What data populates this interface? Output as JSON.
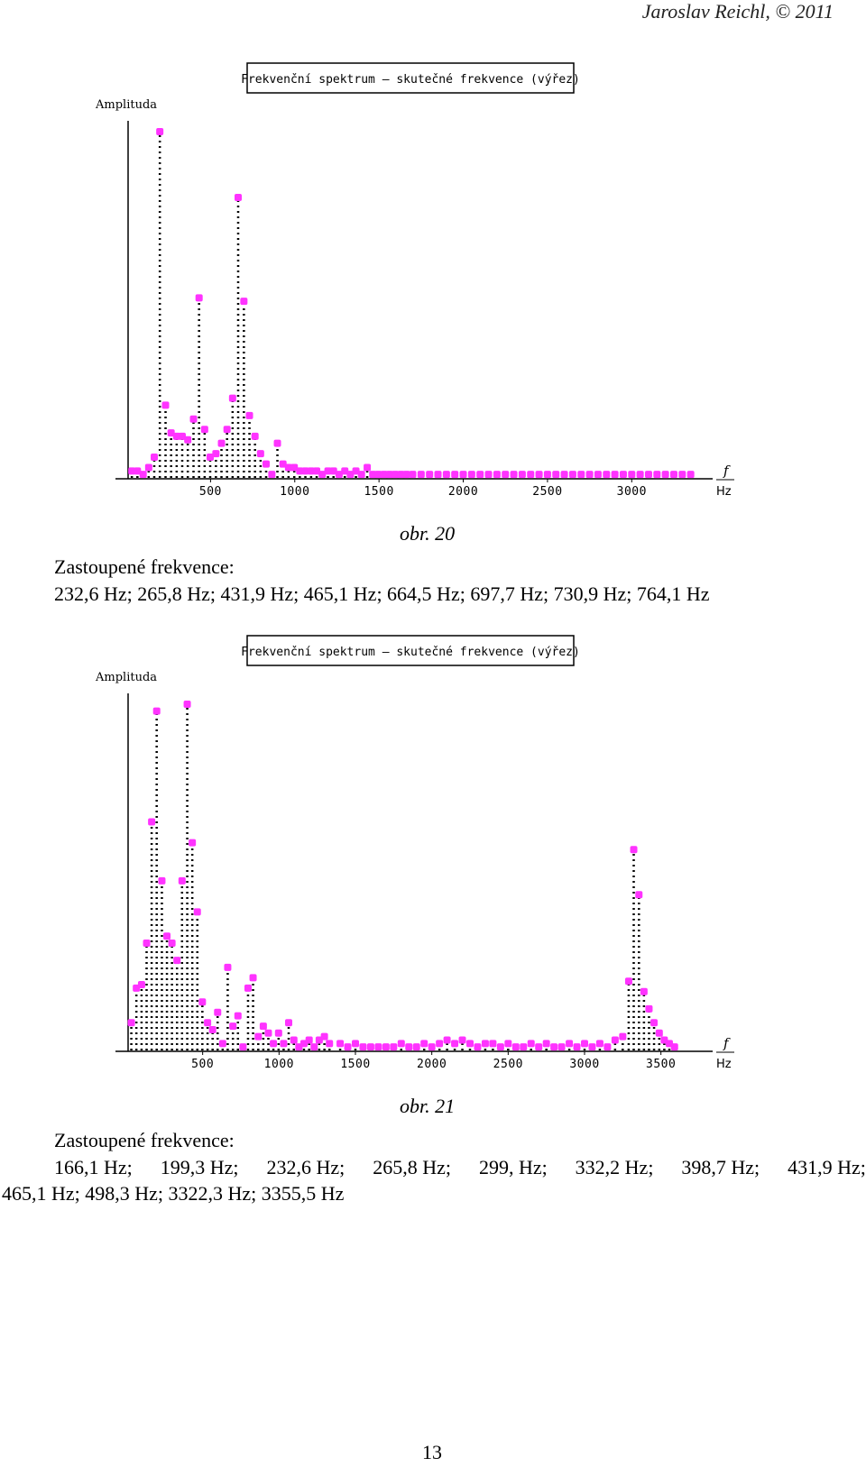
{
  "header": {
    "author": "Jaroslav Reichl, © 2011"
  },
  "figures": [
    {
      "caption": "obr. 20",
      "frequencies_label": "Zastoupené frekvence:",
      "frequencies_text": "232,6 Hz; 265,8 Hz; 431,9 Hz; 465,1 Hz; 664,5 Hz; 697,7 Hz; 730,9 Hz; 764,1 Hz"
    },
    {
      "caption": "obr. 21",
      "frequencies_label": "Zastoupené frekvence:",
      "frequencies_items": [
        "166,1 Hz;",
        "199,3 Hz;",
        "232,6 Hz;",
        "265,8 Hz;",
        "299, Hz;",
        "332,2 Hz;",
        "398,7 Hz;",
        "431,9 Hz;"
      ],
      "frequencies_text_line2": "465,1 Hz; 498,3 Hz; 3322,3 Hz; 3355,5 Hz"
    }
  ],
  "page_number": "13",
  "colors": {
    "marker": "#ff33ff",
    "stem": "#000000",
    "axis": "#000000"
  },
  "chart_data": [
    {
      "type": "scatter",
      "title": "Frekvenční spektrum – skutečné frekvence (výřez)",
      "ylabel": "Amplituda",
      "xlabel": "f Hz",
      "x_unit": "Hz",
      "xticks": [
        500,
        1000,
        1500,
        2000,
        2500,
        3000
      ],
      "xlim": [
        0,
        3400
      ],
      "ylim": [
        0,
        100
      ],
      "grid": false,
      "stems": true,
      "x": [
        33,
        66,
        100,
        133,
        166,
        199,
        233,
        266,
        299,
        332,
        365,
        399,
        432,
        465,
        498,
        532,
        565,
        598,
        631,
        664,
        698,
        731,
        764,
        797,
        830,
        864,
        897,
        930,
        963,
        997,
        1030,
        1063,
        1097,
        1130,
        1163,
        1197,
        1230,
        1263,
        1297,
        1330,
        1363,
        1396,
        1430,
        1463,
        1496,
        1530,
        1563,
        1596,
        1630,
        1663,
        1700,
        1750,
        1800,
        1850,
        1900,
        1950,
        2000,
        2050,
        2100,
        2150,
        2200,
        2250,
        2300,
        2350,
        2400,
        2450,
        2500,
        2550,
        2600,
        2650,
        2700,
        2750,
        2800,
        2850,
        2900,
        2950,
        3000,
        3050,
        3100,
        3150,
        3200,
        3250,
        3300,
        3350
      ],
      "y": [
        2,
        2,
        1,
        3,
        6,
        100,
        21,
        13,
        12,
        12,
        11,
        17,
        52,
        14,
        6,
        7,
        10,
        14,
        23,
        81,
        51,
        18,
        12,
        7,
        4,
        1,
        10,
        4,
        3,
        3,
        2,
        2,
        2,
        2,
        1,
        2,
        2,
        1,
        2,
        1,
        2,
        1,
        3,
        1,
        1,
        1,
        1,
        1,
        1,
        1,
        1,
        1,
        1,
        1,
        1,
        1,
        1,
        1,
        1,
        1,
        1,
        1,
        1,
        1,
        1,
        1,
        1,
        1,
        1,
        1,
        1,
        1,
        1,
        1,
        1,
        1,
        1,
        1,
        1,
        1,
        1,
        1,
        1,
        1
      ]
    },
    {
      "type": "scatter",
      "title": "Frekvenční spektrum – skutečné frekvence (výřez)",
      "ylabel": "Amplituda",
      "xlabel": "f Hz",
      "x_unit": "Hz",
      "xticks": [
        500,
        1000,
        1500,
        2000,
        2500,
        3000,
        3500
      ],
      "xlim": [
        0,
        3750
      ],
      "ylim": [
        0,
        100
      ],
      "grid": false,
      "stems": true,
      "x": [
        33,
        66,
        100,
        133,
        166,
        199,
        233,
        266,
        299,
        332,
        365,
        399,
        432,
        465,
        498,
        532,
        565,
        598,
        631,
        664,
        698,
        731,
        764,
        797,
        830,
        864,
        897,
        930,
        963,
        997,
        1030,
        1063,
        1097,
        1130,
        1163,
        1197,
        1230,
        1263,
        1297,
        1330,
        1400,
        1450,
        1500,
        1550,
        1600,
        1650,
        1700,
        1750,
        1800,
        1850,
        1900,
        1950,
        2000,
        2050,
        2100,
        2150,
        2200,
        2250,
        2300,
        2350,
        2400,
        2450,
        2500,
        2550,
        2600,
        2650,
        2700,
        2750,
        2800,
        2850,
        2900,
        2950,
        3000,
        3050,
        3100,
        3150,
        3200,
        3250,
        3289,
        3322,
        3356,
        3389,
        3422,
        3455,
        3489,
        3522,
        3555,
        3589
      ],
      "y": [
        8,
        18,
        19,
        31,
        66,
        98,
        49,
        33,
        31,
        26,
        49,
        100,
        60,
        40,
        14,
        8,
        6,
        11,
        2,
        24,
        7,
        10,
        1,
        18,
        21,
        4,
        7,
        5,
        2,
        5,
        2,
        8,
        3,
        1,
        2,
        3,
        1,
        3,
        4,
        2,
        2,
        1,
        2,
        1,
        1,
        1,
        1,
        1,
        2,
        1,
        1,
        2,
        1,
        2,
        3,
        2,
        3,
        2,
        1,
        2,
        2,
        1,
        2,
        1,
        1,
        2,
        1,
        2,
        1,
        1,
        2,
        1,
        2,
        1,
        2,
        1,
        3,
        4,
        20,
        58,
        45,
        17,
        12,
        8,
        5,
        3,
        2,
        1
      ]
    }
  ]
}
